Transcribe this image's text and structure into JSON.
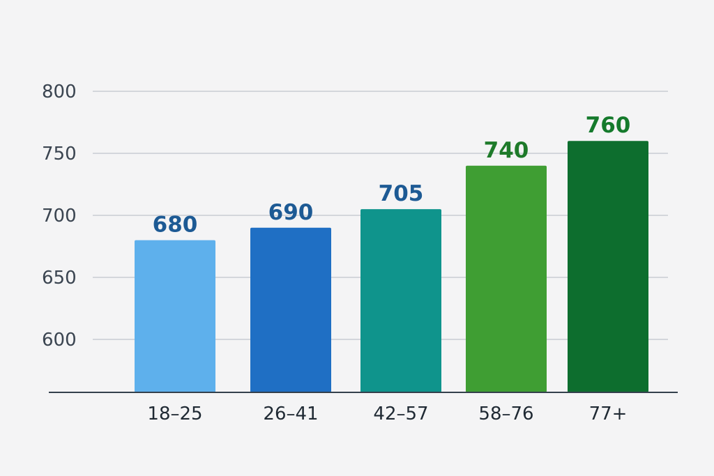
{
  "chart_data": {
    "type": "bar",
    "title": "",
    "xlabel": "",
    "ylabel": "",
    "categories": [
      "18–25",
      "26–41",
      "42–57",
      "58–76",
      "77+"
    ],
    "values": [
      680,
      690,
      705,
      740,
      760
    ],
    "data_labels": [
      "680",
      "690",
      "705",
      "740",
      "760"
    ],
    "bar_colors": [
      "#5eb0ec",
      "#1f6fc4",
      "#0f948c",
      "#3f9e33",
      "#0d6e2e"
    ],
    "label_colors": [
      "#1d5a94",
      "#1d5a94",
      "#1d5a94",
      "#1e7a2a",
      "#157a2c"
    ],
    "y_ticks": [
      600,
      650,
      700,
      750,
      800
    ],
    "y_tick_labels": [
      "600",
      "650",
      "700",
      "750",
      "800"
    ],
    "ylim": [
      560,
      800
    ],
    "grid": true,
    "legend": "none"
  }
}
